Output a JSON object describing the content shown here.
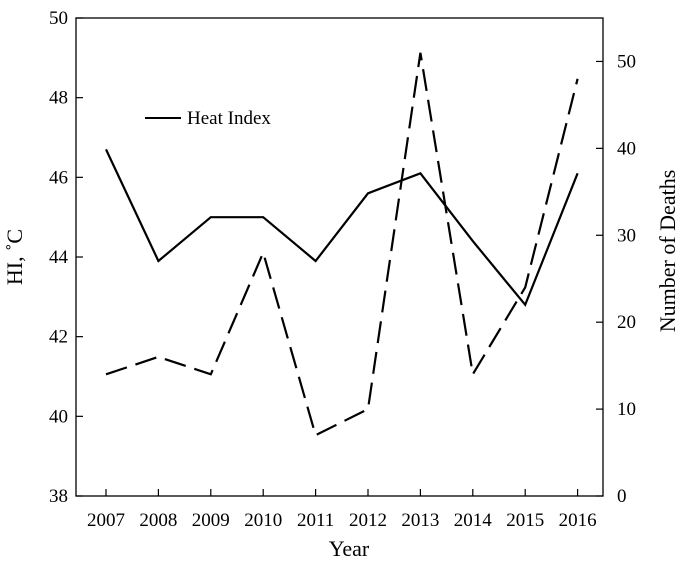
{
  "chart_data": {
    "type": "line",
    "categories": [
      "2007",
      "2008",
      "2009",
      "2010",
      "2011",
      "2012",
      "2013",
      "2014",
      "2015",
      "2016"
    ],
    "series": [
      {
        "name": "Heat Index",
        "axis": "left",
        "style": "solid",
        "values": [
          46.7,
          43.9,
          45.0,
          45.0,
          43.9,
          45.6,
          46.1,
          44.4,
          42.8,
          46.1
        ]
      },
      {
        "axis": "right",
        "style": "dashed",
        "values": [
          14,
          16,
          14,
          28,
          7,
          10,
          51,
          14,
          24,
          48
        ]
      }
    ],
    "xlabel": "Year",
    "ylabel": "HI, ˚C",
    "y2label": "Number of Deaths",
    "ylim": [
      38,
      50
    ],
    "y2lim": [
      0,
      55
    ],
    "yticks": [
      38,
      40,
      42,
      44,
      46,
      48,
      50
    ],
    "y2ticks": [
      0,
      10,
      20,
      30,
      40,
      50
    ],
    "legend": {
      "position": "top-left",
      "entries": [
        "Heat Index"
      ]
    },
    "grid": false,
    "line_color": "#000000"
  }
}
